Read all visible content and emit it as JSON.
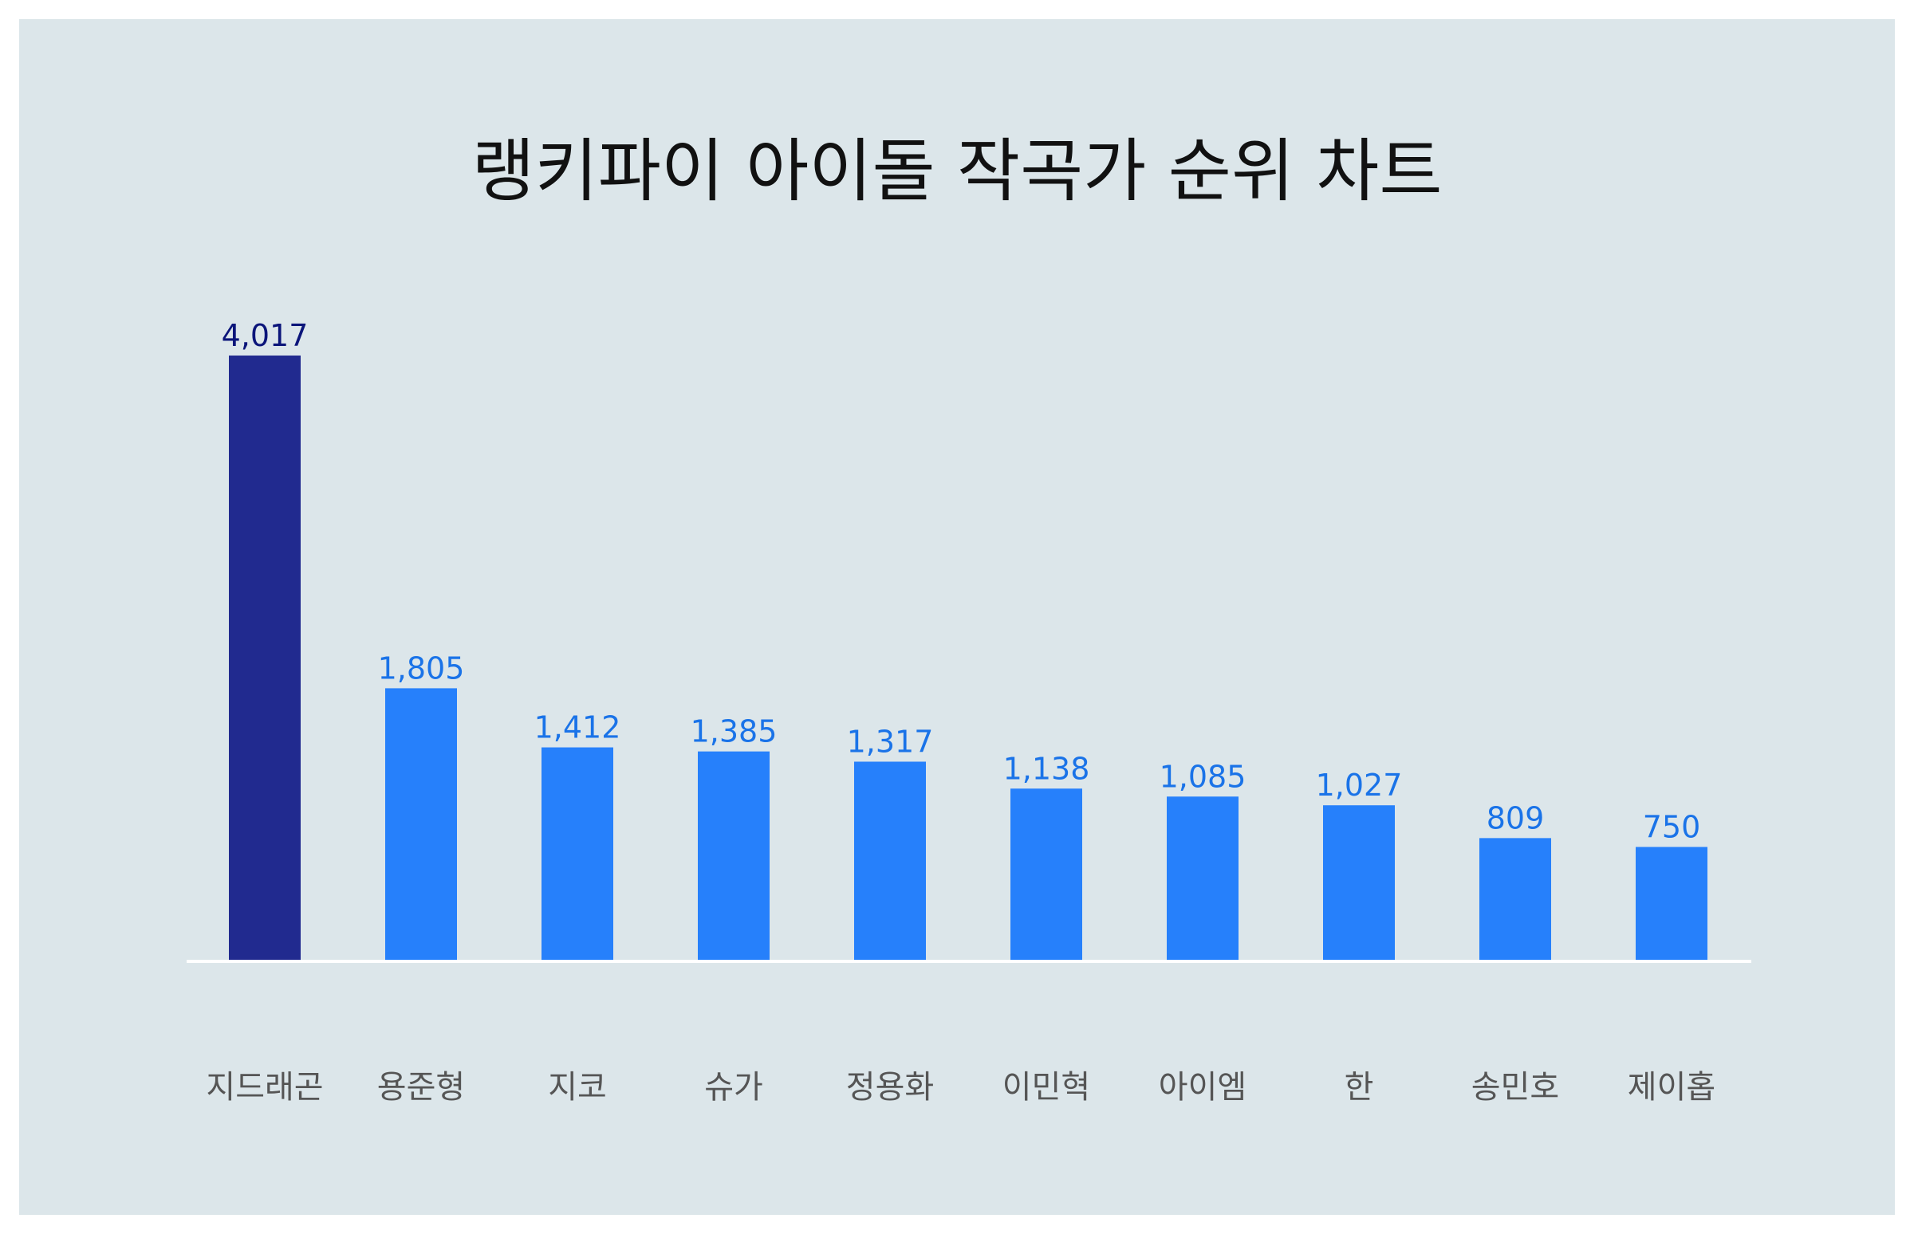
{
  "title": "랭키파이 아이돌 작곡가 순위 차트",
  "colors": {
    "background": "#dce6ea",
    "highlight_bar": "#212a8f",
    "bar": "#2680fb",
    "highlight_label": "#0b157a",
    "label": "#1a73e8",
    "axis": "#ffffff",
    "category_text": "#555555"
  },
  "chart_data": {
    "type": "bar",
    "title": "랭키파이 아이돌 작곡가 순위 차트",
    "categories": [
      "지드래곤",
      "용준형",
      "지코",
      "슈가",
      "정용화",
      "이민혁",
      "아이엠",
      "한",
      "송민호",
      "제이홉"
    ],
    "values": [
      4017,
      1805,
      1412,
      1385,
      1317,
      1138,
      1085,
      1027,
      809,
      750
    ],
    "value_labels": [
      "4,017",
      "1,805",
      "1,412",
      "1,385",
      "1,317",
      "1,138",
      "1,085",
      "1,027",
      "809",
      "750"
    ],
    "highlight_index": 0,
    "ylim": [
      0,
      4017
    ],
    "grid": false,
    "legend": "none"
  }
}
